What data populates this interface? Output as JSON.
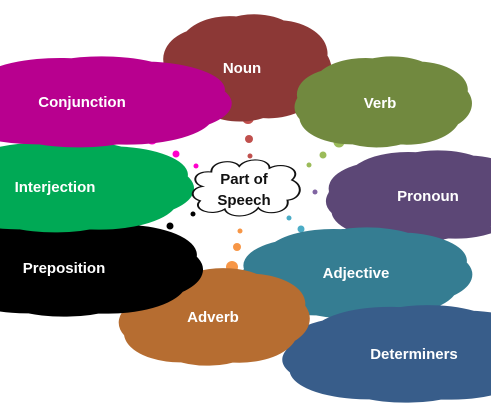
{
  "center": {
    "line1": "Part of",
    "line2": "Speech"
  },
  "clouds": {
    "noun": {
      "label": "Noun",
      "color": "#c0504d",
      "stroke": "#8c3836"
    },
    "verb": {
      "label": "Verb",
      "color": "#9bbb59",
      "stroke": "#71893f"
    },
    "pronoun": {
      "label": "Pronoun",
      "color": "#8064a2",
      "stroke": "#5c4776"
    },
    "adjective": {
      "label": "Adjective",
      "color": "#4bacc6",
      "stroke": "#357d92"
    },
    "determiners": {
      "label": "Determiners",
      "color": "#4f81bd",
      "stroke": "#385d8a"
    },
    "adverb": {
      "label": "Adverb",
      "color": "#f79646",
      "stroke": "#b66d31"
    },
    "preposition": {
      "label": "Preposition",
      "color": "#000000",
      "stroke": "#000000"
    },
    "interjection": {
      "label": "Interjection",
      "color": "#00e676",
      "stroke": "#00a955"
    },
    "conjunction": {
      "label": "Conjunction",
      "color": "#ff00cc",
      "stroke": "#b8008f"
    }
  }
}
